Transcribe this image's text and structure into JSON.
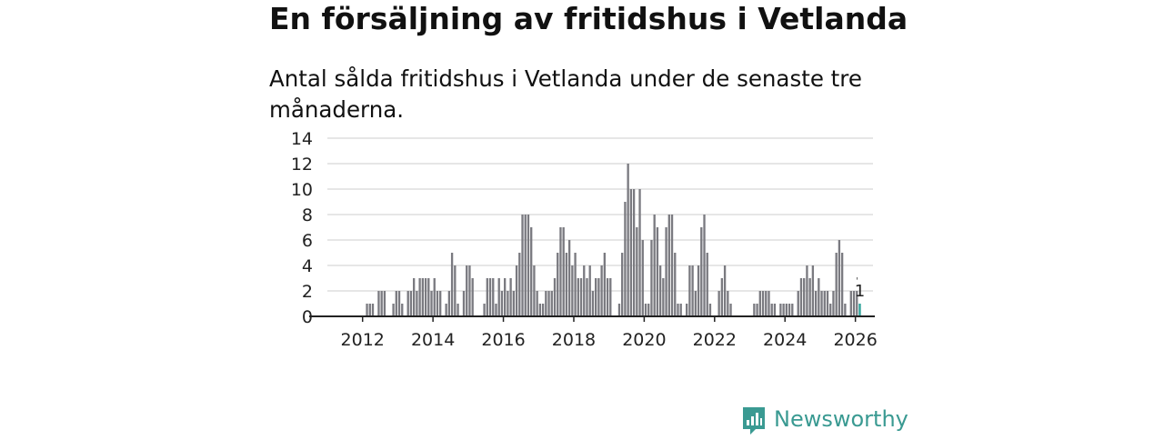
{
  "title": "En försäljning av fritidshus i Vetlanda",
  "subtitle": "Antal sålda fritidshus i Vetlanda under de senaste tre månaderna.",
  "brand": {
    "name": "Newsworthy",
    "icon": "newsworthy-logo-icon",
    "color": "#3a9a92"
  },
  "colors": {
    "bar": "#7a7a80",
    "highlight": "#2aa198",
    "grid": "#dddddd",
    "axis": "#222222"
  },
  "chart_data": {
    "type": "bar",
    "title": "",
    "xlabel": "",
    "ylabel": "",
    "ylim": [
      0,
      14
    ],
    "yticks": [
      0,
      2,
      4,
      6,
      8,
      10,
      12,
      14
    ],
    "xticks": [
      "2012",
      "2014",
      "2016",
      "2018",
      "2020",
      "2022",
      "2024",
      "2026"
    ],
    "xtick_years": [
      2012,
      2014,
      2016,
      2018,
      2020,
      2022,
      2024,
      2026
    ],
    "x_start": 2011.0,
    "x_end": 2026.5,
    "start": "2011-01",
    "values": [
      0,
      0,
      0,
      0,
      0,
      0,
      0,
      0,
      0,
      0,
      0,
      0,
      0,
      1,
      1,
      1,
      0,
      2,
      2,
      2,
      0,
      0,
      1,
      2,
      2,
      1,
      0,
      2,
      2,
      3,
      2,
      3,
      3,
      3,
      3,
      2,
      3,
      2,
      2,
      0,
      1,
      2,
      5,
      4,
      1,
      0,
      2,
      4,
      4,
      3,
      0,
      0,
      0,
      1,
      3,
      3,
      3,
      1,
      3,
      2,
      3,
      2,
      3,
      2,
      4,
      5,
      8,
      8,
      8,
      7,
      4,
      2,
      1,
      1,
      2,
      2,
      2,
      3,
      5,
      7,
      7,
      5,
      6,
      4,
      5,
      3,
      3,
      4,
      3,
      4,
      2,
      3,
      3,
      4,
      5,
      3,
      3,
      0,
      0,
      1,
      5,
      9,
      12,
      10,
      10,
      7,
      10,
      6,
      1,
      1,
      6,
      8,
      7,
      4,
      3,
      7,
      8,
      8,
      5,
      1,
      1,
      0,
      1,
      4,
      4,
      2,
      4,
      7,
      8,
      5,
      1,
      0,
      0,
      2,
      3,
      4,
      2,
      1,
      0,
      0,
      0,
      0,
      0,
      0,
      0,
      1,
      1,
      2,
      2,
      2,
      2,
      1,
      1,
      0,
      1,
      1,
      1,
      1,
      1,
      0,
      2,
      3,
      3,
      4,
      3,
      4,
      2,
      3,
      2,
      2,
      2,
      1,
      2,
      5,
      6,
      5,
      1,
      0,
      2,
      2,
      2,
      1
    ],
    "last_label": "1",
    "last_label_prefix": "'"
  }
}
